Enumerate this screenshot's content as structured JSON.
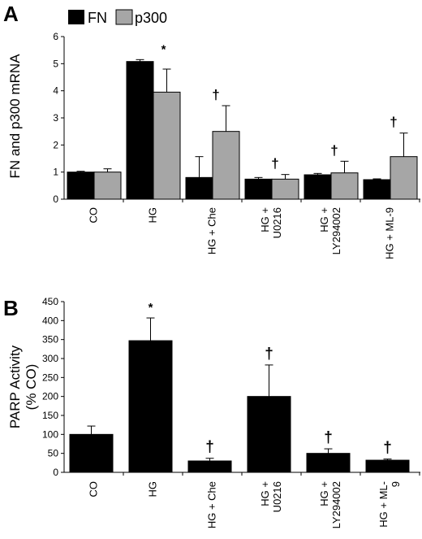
{
  "chart_data": [
    {
      "panel": "A",
      "type": "bar",
      "ylabel": "FN and p300 mRNA",
      "ylim": [
        0,
        6
      ],
      "yticks": [
        "0",
        "1",
        "2",
        "3",
        "4",
        "5",
        "6"
      ],
      "categories": [
        "CO",
        "HG",
        "HG + Che",
        "HG + U0216",
        "HG + LY294002",
        "HG + ML-9"
      ],
      "category_labels": [
        [
          "CO"
        ],
        [
          "HG"
        ],
        [
          "HG + Che"
        ],
        [
          "HG +",
          "U0216"
        ],
        [
          "HG +",
          "LY294002"
        ],
        [
          "HG + ML-9"
        ]
      ],
      "legend_position": "top-left",
      "series": [
        {
          "name": "FN",
          "color": "#000000",
          "values": [
            1.0,
            5.08,
            0.8,
            0.74,
            0.9,
            0.72
          ],
          "errors": [
            0.03,
            0.07,
            0.77,
            0.06,
            0.05,
            0.03
          ]
        },
        {
          "name": "p300",
          "color": "#a6a6a6",
          "values": [
            1.0,
            3.95,
            2.5,
            0.74,
            0.97,
            1.57
          ],
          "errors": [
            0.12,
            0.85,
            0.95,
            0.17,
            0.43,
            0.87
          ]
        }
      ],
      "annotations": [
        "",
        "*",
        "†",
        "†",
        "†",
        "†"
      ]
    },
    {
      "panel": "B",
      "type": "bar",
      "ylabel": [
        "PARP Activity",
        "(% CO)"
      ],
      "ylim": [
        0,
        450
      ],
      "yticks": [
        "0",
        "50",
        "100",
        "150",
        "200",
        "250",
        "300",
        "350",
        "400",
        "450"
      ],
      "categories": [
        "CO",
        "HG",
        "HG + Che",
        "HG + U0216",
        "HG + LY294002",
        "HG + ML-9"
      ],
      "category_labels": [
        [
          "CO"
        ],
        [
          "HG"
        ],
        [
          "HG + Che"
        ],
        [
          "HG +",
          "U0216"
        ],
        [
          "HG +",
          "LY294002"
        ],
        [
          "HG + ML-",
          "9"
        ]
      ],
      "series": [
        {
          "name": "",
          "color": "#000000",
          "values": [
            100,
            347,
            30,
            200,
            50,
            32
          ],
          "errors": [
            22,
            60,
            7,
            83,
            12,
            3
          ]
        }
      ],
      "annotations": [
        "",
        "*",
        "†",
        "†",
        "†",
        "†"
      ]
    }
  ]
}
